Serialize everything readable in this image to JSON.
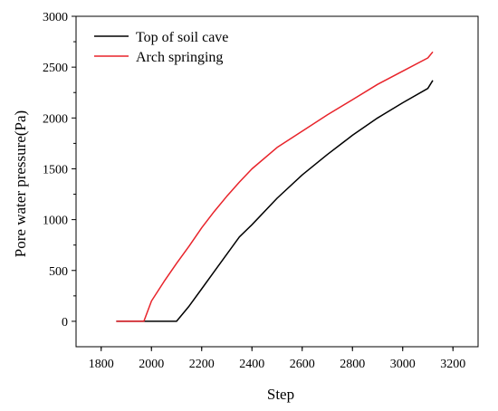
{
  "chart_data": {
    "type": "line",
    "title": "",
    "xlabel": "Step",
    "ylabel": "Pore water pressure(Pa)",
    "xlim": [
      1700,
      3300
    ],
    "ylim": [
      -250,
      3000
    ],
    "x_ticks": [
      1800,
      2000,
      2200,
      2400,
      2600,
      2800,
      3000,
      3200
    ],
    "y_ticks": [
      0,
      500,
      1000,
      1500,
      2000,
      2500,
      3000
    ],
    "grid": false,
    "legend_position": "top-left",
    "series": [
      {
        "name": "Top of soil cave",
        "color": "#000000",
        "x": [
          1860,
          1980,
          2100,
          2150,
          2200,
          2250,
          2300,
          2350,
          2400,
          2500,
          2600,
          2700,
          2800,
          2900,
          3000,
          3100,
          3120
        ],
        "y": [
          0,
          0,
          0,
          150,
          320,
          490,
          660,
          830,
          950,
          1210,
          1440,
          1640,
          1830,
          2000,
          2150,
          2290,
          2370
        ]
      },
      {
        "name": "Arch springing",
        "color": "#e8232a",
        "x": [
          1860,
          1970,
          2000,
          2050,
          2100,
          2150,
          2200,
          2250,
          2300,
          2350,
          2400,
          2500,
          2600,
          2700,
          2800,
          2900,
          3000,
          3100,
          3120
        ],
        "y": [
          0,
          0,
          200,
          390,
          570,
          740,
          920,
          1080,
          1230,
          1370,
          1500,
          1710,
          1870,
          2030,
          2180,
          2330,
          2460,
          2590,
          2650
        ]
      }
    ]
  }
}
